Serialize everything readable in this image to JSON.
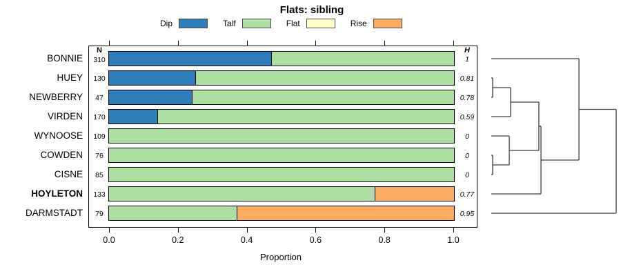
{
  "chart_data": {
    "type": "bar",
    "stacked": true,
    "orientation": "horizontal",
    "title": "Flats: sibling",
    "xlabel": "Proportion",
    "xlim": [
      0,
      1
    ],
    "xticks": [
      "0.0",
      "0.2",
      "0.4",
      "0.6",
      "0.8",
      "1.0"
    ],
    "grid": false,
    "legend_position": "top",
    "categories": [
      "BONNIE",
      "HUEY",
      "NEWBERRY",
      "VIRDEN",
      "WYNOOSE",
      "COWDEN",
      "CISNE",
      "HOYLETON",
      "DARMSTADT"
    ],
    "bold_categories": [
      "HOYLETON"
    ],
    "n_header": "N",
    "n_values": [
      310,
      130,
      47,
      170,
      109,
      76,
      85,
      133,
      79
    ],
    "h_header": "H",
    "h_values": [
      "1",
      "0.81",
      "0.78",
      "0.59",
      "0",
      "0",
      "0",
      "0.77",
      "0.95"
    ],
    "series": [
      {
        "name": "Dip",
        "color": "#2E7CB8",
        "values": [
          0.47,
          0.25,
          0.24,
          0.14,
          0,
          0,
          0,
          0,
          0
        ]
      },
      {
        "name": "Talf",
        "color": "#AFDEA2",
        "values": [
          0.53,
          0.75,
          0.76,
          0.86,
          1,
          1,
          1,
          0.77,
          0.37
        ]
      },
      {
        "name": "Flat",
        "color": "#FFFFC9",
        "values": [
          0,
          0,
          0,
          0,
          0,
          0,
          0,
          0,
          0
        ]
      },
      {
        "name": "Rise",
        "color": "#FCAC62",
        "values": [
          0,
          0,
          0,
          0,
          0,
          0,
          0,
          0.23,
          0.63
        ]
      }
    ]
  },
  "dendrogram": {
    "leaves": [
      "BONNIE",
      "HUEY",
      "NEWBERRY",
      "VIRDEN",
      "WYNOOSE",
      "COWDEN",
      "CISNE",
      "HOYLETON",
      "DARMSTADT"
    ],
    "merges": [
      {
        "id": "m1",
        "a": "HUEY",
        "b": "NEWBERRY",
        "h": 0.011
      },
      {
        "id": "m2",
        "a": "m1",
        "b": "VIRDEN",
        "h": 0.155
      },
      {
        "id": "m3",
        "a": "COWDEN",
        "b": "CISNE",
        "h": 0.011
      },
      {
        "id": "m4",
        "a": "WYNOOSE",
        "b": "m3",
        "h": 0.144
      },
      {
        "id": "m5",
        "a": "m2",
        "b": "m4",
        "h": 0.381
      },
      {
        "id": "m6",
        "a": "m5",
        "b": "HOYLETON",
        "h": 0.398
      },
      {
        "id": "m7",
        "a": "BONNIE",
        "b": "m6",
        "h": 0.702
      },
      {
        "id": "m8",
        "a": "m7",
        "b": "DARMSTADT",
        "h": 1.0
      }
    ],
    "line_color": "#3c3c3c"
  }
}
